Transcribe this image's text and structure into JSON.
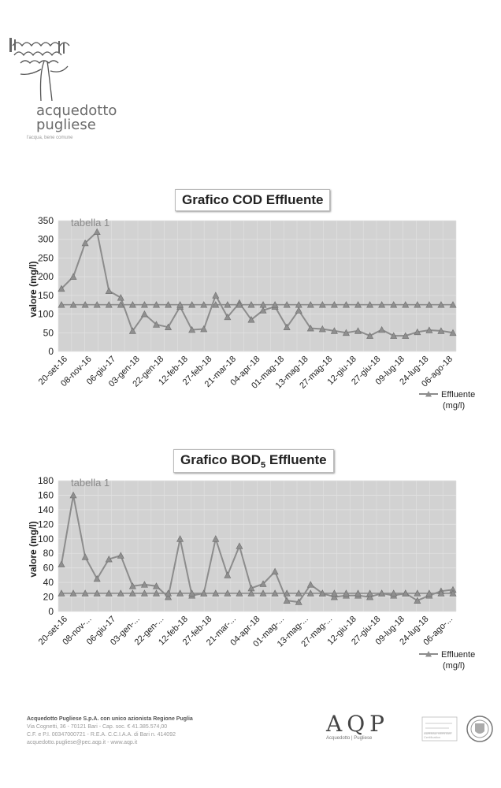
{
  "header": {
    "brand_line1": "acquedotto",
    "brand_line2": "pugliese",
    "tagline": "l'acqua, bene comune"
  },
  "colors": {
    "plot_background": "#d2d2d2",
    "effluent_line": "#8c8c8c",
    "limit_line": "#8c8c8c",
    "grid": "#e2e2e2"
  },
  "chart_data": [
    {
      "type": "line",
      "title": "Grafico COD Effluente",
      "title_sub": "",
      "subtitle": "tabella 1",
      "xlabel": "",
      "ylabel": "valore (mg/l)",
      "ylim": [
        0,
        350
      ],
      "yticks": [
        0,
        50,
        100,
        150,
        200,
        250,
        300,
        350
      ],
      "xtick_labels": [
        "20-set-16",
        "08-nov-16",
        "06-giu-17",
        "03-gen-18",
        "22-gen-18",
        "12-feb-18",
        "27-feb-18",
        "21-mar-18",
        "04-apr-18",
        "01-mag-18",
        "13-mag-18",
        "27-mag-18",
        "12-giu-18",
        "27-giu-18",
        "09-lug-18",
        "24-lug-18",
        "06-ago-18"
      ],
      "legend": [
        "Effluente",
        "(mg/l)"
      ],
      "legend_position": "bottom-right",
      "grid": true,
      "series": [
        {
          "name": "Effluente (mg/l)",
          "values": [
            168,
            200,
            290,
            320,
            162,
            144,
            55,
            100,
            72,
            65,
            120,
            58,
            60,
            150,
            92,
            130,
            85,
            110,
            120,
            65,
            110,
            62,
            60,
            55,
            50,
            55,
            42,
            58,
            42,
            42,
            52,
            57,
            55,
            50
          ]
        },
        {
          "name": "",
          "values": [
            125,
            125,
            125,
            125,
            125,
            125,
            125,
            125,
            125,
            125,
            125,
            125,
            125,
            125,
            125,
            125,
            125,
            125,
            125,
            125,
            125,
            125,
            125,
            125,
            125,
            125,
            125,
            125,
            125,
            125,
            125,
            125,
            125,
            125
          ]
        }
      ]
    },
    {
      "type": "line",
      "title": "Grafico BOD",
      "title_sub": "5",
      "title_suffix": " Effluente",
      "subtitle": "tabella 1",
      "xlabel": "",
      "ylabel": "valore (mg/l)",
      "ylim": [
        0,
        180
      ],
      "yticks": [
        0,
        20,
        40,
        60,
        80,
        100,
        120,
        140,
        160,
        180
      ],
      "xtick_labels": [
        "20-set-16",
        "08-nov-...",
        "06-giu-17",
        "03-gen-...",
        "22-gen-...",
        "12-feb-18",
        "27-feb-18",
        "21-mar-...",
        "04-apr-18",
        "01-mag-...",
        "13-mag-...",
        "27-mag-...",
        "12-giu-18",
        "27-giu-18",
        "09-lug-18",
        "24-lug-18",
        "06-ago-..."
      ],
      "legend": [
        "Effluente",
        "(mg/l)"
      ],
      "legend_position": "bottom-right",
      "grid": true,
      "series": [
        {
          "name": "Effluente (mg/l)",
          "values": [
            65,
            160,
            75,
            45,
            72,
            77,
            35,
            37,
            35,
            20,
            100,
            22,
            25,
            100,
            50,
            90,
            32,
            38,
            55,
            15,
            13,
            37,
            25,
            20,
            22,
            22,
            20,
            25,
            22,
            25,
            15,
            22,
            28,
            30
          ]
        },
        {
          "name": "",
          "values": [
            25,
            25,
            25,
            25,
            25,
            25,
            25,
            25,
            25,
            25,
            25,
            25,
            25,
            25,
            25,
            25,
            25,
            25,
            25,
            25,
            25,
            25,
            25,
            25,
            25,
            25,
            25,
            25,
            25,
            25,
            25,
            25,
            25,
            25
          ]
        }
      ]
    }
  ],
  "footer": {
    "line1": "Acquedotto Pugliese S.p.A. con unico azionista Regione Puglia",
    "line2": "Via Cognetti, 36 - 70121 Bari - Cap. soc. € 41.385.574,00",
    "line3": "C.F. e P.I. 00347000721 - R.E.A. C.C.I.A.A. di Bari n. 414092",
    "line4": "acquedotto.pugliese@pec.aqp.it - www.aqp.it",
    "aqp_letters": "AQP",
    "aqp_left": "Acquedotto",
    "aqp_right": "Pugliese",
    "cert_text": "BUREAU VERITAS Certification"
  }
}
